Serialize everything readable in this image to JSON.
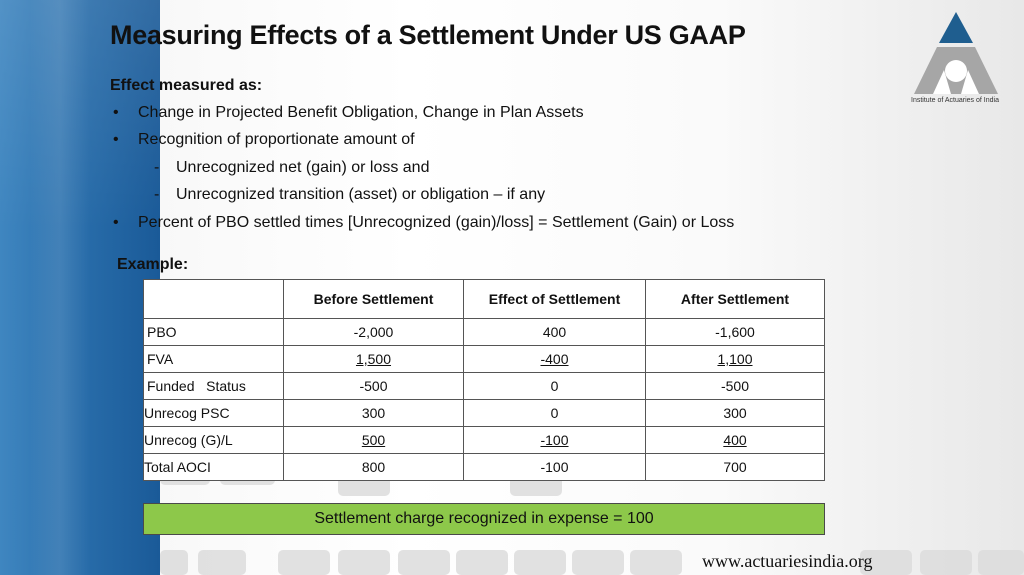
{
  "slide": {
    "title": "Measuring Effects of a Settlement Under US GAAP",
    "lead": "Effect measured as:",
    "bullets": [
      {
        "mark": "•",
        "text": "Change in Projected Benefit Obligation, Change in Plan Assets"
      },
      {
        "mark": "•",
        "text": "Recognition of proportionate amount of"
      },
      {
        "mark": "-",
        "text": "Unrecognized net (gain) or loss and",
        "sub": true
      },
      {
        "mark": "-",
        "text": "Unrecognized transition (asset) or obligation – if any",
        "sub": true
      },
      {
        "mark": "•",
        "text": "Percent of PBO settled times [Unrecognized (gain)/loss] = Settlement (Gain) or Loss"
      }
    ],
    "example_label": "Example:"
  },
  "logo": {
    "caption": "Institute of Actuaries of India",
    "colors": {
      "top": "#1f5e8f",
      "body": "#a6a6a6"
    }
  },
  "table": {
    "headers": [
      "",
      "Before Settlement",
      "Effect of Settlement",
      "After Settlement"
    ],
    "rows": [
      {
        "label": "PBO",
        "before": "-2,000",
        "effect": "400",
        "after": "-1,600"
      },
      {
        "label": "FVA",
        "before": "1,500",
        "effect": "-400",
        "after": "1,100"
      },
      {
        "label": "Funded   Status",
        "before": "-500",
        "effect": "0",
        "after": "-500"
      },
      {
        "label": "Unrecog PSC",
        "before": "300",
        "effect": "0",
        "after": "300"
      },
      {
        "label": "Unrecog (G)/L",
        "before": "500",
        "effect": "-100",
        "after": "400"
      },
      {
        "label": "Total AOCI",
        "before": "800",
        "effect": "-100",
        "after": "700"
      }
    ]
  },
  "charge_box": {
    "text": "Settlement charge recognized in expense = 100",
    "color": "#8dc84a"
  },
  "footer": {
    "url": "www.actuariesindia.org"
  },
  "theme": {
    "band_blue": "#2a6fac"
  }
}
